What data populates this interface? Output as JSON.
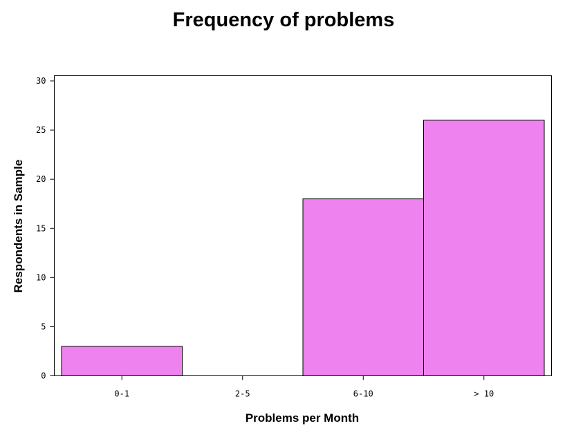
{
  "chart_data": {
    "type": "bar",
    "title": "Frequency of problems",
    "xlabel": "Problems per Month",
    "ylabel": "Respondents in Sample",
    "categories": [
      "0-1",
      "2-5",
      "6-10",
      "> 10"
    ],
    "values": [
      3,
      0,
      18,
      26
    ],
    "ylim": [
      0,
      30
    ],
    "yticks": [
      0,
      5,
      10,
      15,
      20,
      25,
      30
    ],
    "ytick_labels": [
      "0",
      "5",
      "10",
      "15",
      "20",
      "25",
      "30"
    ],
    "grid": false,
    "bar_color": "#ee82ee",
    "edge_color": "#000000"
  }
}
